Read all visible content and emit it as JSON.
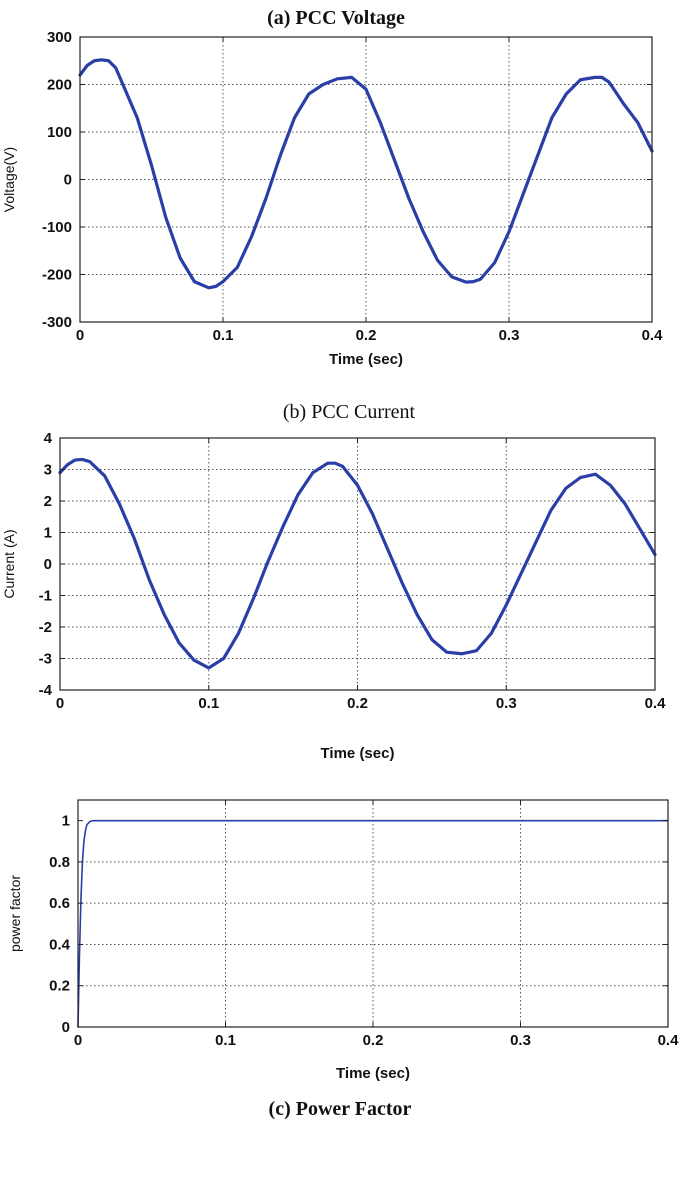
{
  "chart_data": [
    {
      "type": "line",
      "title": "(a) PCC Voltage",
      "title_bold": true,
      "xlabel": "Time (sec)",
      "ylabel": "Voltage(V)",
      "xlim": [
        0,
        0.4
      ],
      "ylim": [
        -300,
        300
      ],
      "xticks": [
        0,
        0.1,
        0.2,
        0.3,
        0.4
      ],
      "xtick_labels": [
        "0",
        "0.1",
        "0.2",
        "0.3",
        "0.4"
      ],
      "yticks": [
        -300,
        -200,
        -100,
        0,
        100,
        200,
        300
      ],
      "ytick_labels": [
        "-300",
        "-200",
        "-100",
        "0",
        "100",
        "200",
        "300"
      ],
      "grid": true,
      "series": [
        {
          "color": "#2a3ea8",
          "x": [
            0,
            0.005,
            0.01,
            0.015,
            0.02,
            0.025,
            0.03,
            0.04,
            0.05,
            0.06,
            0.07,
            0.08,
            0.09,
            0.095,
            0.1,
            0.11,
            0.12,
            0.13,
            0.14,
            0.15,
            0.16,
            0.17,
            0.18,
            0.19,
            0.2,
            0.21,
            0.22,
            0.23,
            0.24,
            0.25,
            0.26,
            0.27,
            0.275,
            0.28,
            0.29,
            0.3,
            0.31,
            0.32,
            0.33,
            0.34,
            0.35,
            0.36,
            0.365,
            0.37,
            0.38,
            0.39,
            0.4
          ],
          "y": [
            220,
            240,
            250,
            252,
            250,
            235,
            200,
            130,
            30,
            -80,
            -165,
            -215,
            -228,
            -225,
            -215,
            -185,
            -120,
            -40,
            50,
            130,
            180,
            200,
            212,
            215,
            190,
            120,
            40,
            -40,
            -110,
            -170,
            -205,
            -216,
            -215,
            -210,
            -175,
            -110,
            -30,
            50,
            130,
            180,
            210,
            215,
            215,
            205,
            160,
            120,
            60
          ]
        }
      ]
    },
    {
      "type": "line",
      "title": "(b) PCC Current",
      "title_bold": false,
      "xlabel": "Time (sec)",
      "ylabel": "Current (A)",
      "xlim": [
        0,
        0.4
      ],
      "ylim": [
        -4,
        4
      ],
      "xticks": [
        0,
        0.1,
        0.2,
        0.3,
        0.4
      ],
      "xtick_labels": [
        "0",
        "0.1",
        "0.2",
        "0.3",
        "0.4"
      ],
      "yticks": [
        -4,
        -3,
        -2,
        -1,
        0,
        1,
        2,
        3,
        4
      ],
      "ytick_labels": [
        "-4",
        "-3",
        "-2",
        "-1",
        "0",
        "1",
        "2",
        "3",
        "4"
      ],
      "grid": true,
      "series": [
        {
          "color": "#2a3ea8",
          "x": [
            0,
            0.005,
            0.01,
            0.015,
            0.02,
            0.03,
            0.04,
            0.05,
            0.06,
            0.07,
            0.08,
            0.09,
            0.1,
            0.11,
            0.12,
            0.13,
            0.14,
            0.15,
            0.16,
            0.17,
            0.18,
            0.185,
            0.19,
            0.2,
            0.21,
            0.22,
            0.23,
            0.24,
            0.25,
            0.26,
            0.27,
            0.28,
            0.29,
            0.3,
            0.31,
            0.32,
            0.33,
            0.34,
            0.35,
            0.36,
            0.37,
            0.38,
            0.39,
            0.4
          ],
          "y": [
            2.9,
            3.15,
            3.3,
            3.32,
            3.25,
            2.8,
            1.9,
            0.8,
            -0.5,
            -1.6,
            -2.5,
            -3.05,
            -3.3,
            -3.0,
            -2.2,
            -1.1,
            0.1,
            1.2,
            2.2,
            2.9,
            3.2,
            3.2,
            3.1,
            2.5,
            1.6,
            0.5,
            -0.6,
            -1.6,
            -2.4,
            -2.8,
            -2.85,
            -2.75,
            -2.2,
            -1.3,
            -0.3,
            0.7,
            1.7,
            2.4,
            2.75,
            2.85,
            2.5,
            1.9,
            1.1,
            0.3
          ]
        }
      ]
    },
    {
      "type": "line",
      "title": "(c) Power Factor",
      "title_bold": true,
      "xlabel": "Time (sec)",
      "ylabel": "power factor",
      "xlim": [
        0,
        0.4
      ],
      "ylim": [
        0,
        1.1
      ],
      "xticks": [
        0,
        0.1,
        0.2,
        0.3,
        0.4
      ],
      "xtick_labels": [
        "0",
        "0.1",
        "0.2",
        "0.3",
        "0.4"
      ],
      "yticks": [
        0,
        0.2,
        0.4,
        0.6,
        0.8,
        1
      ],
      "ytick_labels": [
        "0",
        "0.2",
        "0.4",
        "0.6",
        "0.8",
        "1"
      ],
      "grid": true,
      "series": [
        {
          "color": "#2a3ea8",
          "x": [
            0,
            0.001,
            0.002,
            0.003,
            0.004,
            0.005,
            0.006,
            0.008,
            0.01,
            0.015,
            0.02,
            0.03,
            0.4
          ],
          "y": [
            0,
            0.35,
            0.62,
            0.8,
            0.9,
            0.95,
            0.98,
            0.995,
            1.0,
            1.0,
            1.0,
            1.0,
            1.0
          ]
        }
      ]
    }
  ]
}
